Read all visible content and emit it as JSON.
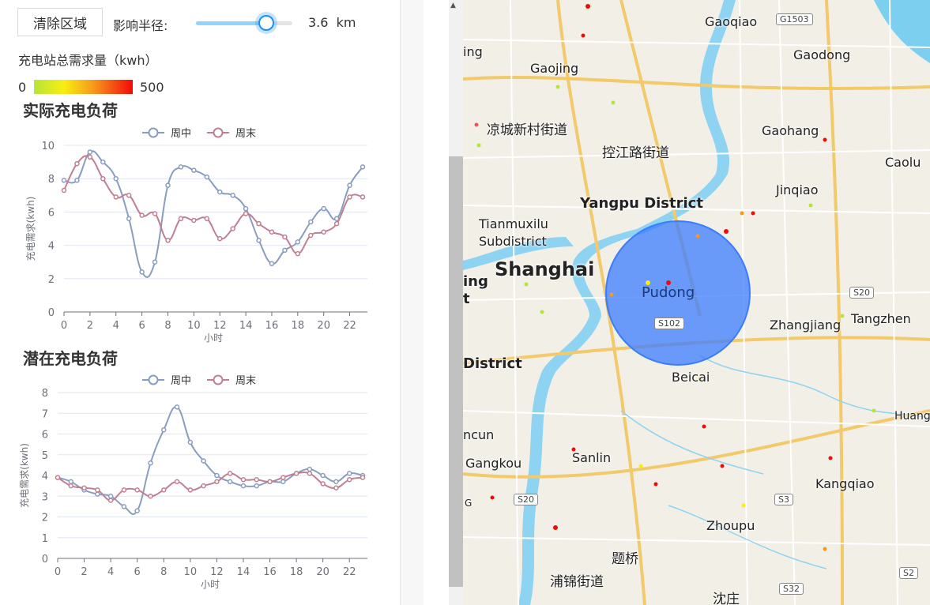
{
  "controls": {
    "clear_label": "清除区域",
    "radius_label": "影响半径:",
    "radius_value": "3.6",
    "radius_unit": "km",
    "radius_fraction": 0.73
  },
  "legend": {
    "title": "充电站总需求量（kwh）",
    "min": "0",
    "max": "500"
  },
  "charts": [
    {
      "title": "实际充电负荷",
      "legend": [
        "周中",
        "周末"
      ],
      "ylabel": "充电需求(kwh)",
      "xlabel": "小时",
      "yticks": [
        "0",
        "2",
        "4",
        "6",
        "8",
        "10"
      ],
      "xticks": [
        "0",
        "2",
        "4",
        "6",
        "8",
        "10",
        "12",
        "14",
        "16",
        "18",
        "20",
        "22"
      ]
    },
    {
      "title": "潜在充电负荷",
      "legend": [
        "周中",
        "周末"
      ],
      "ylabel": "充电需求(kwh)",
      "xlabel": "小时",
      "yticks": [
        "0",
        "1",
        "2",
        "3",
        "4",
        "5",
        "6",
        "7",
        "8"
      ],
      "xticks": [
        "0",
        "2",
        "4",
        "6",
        "8",
        "10",
        "12",
        "14",
        "16",
        "18",
        "20",
        "22"
      ]
    }
  ],
  "chart_data": [
    {
      "type": "line",
      "title": "实际充电负荷",
      "xlabel": "小时",
      "ylabel": "充电需求(kwh)",
      "ylim": [
        0,
        10
      ],
      "x": [
        0,
        1,
        2,
        3,
        4,
        5,
        6,
        7,
        8,
        9,
        10,
        11,
        12,
        13,
        14,
        15,
        16,
        17,
        18,
        19,
        20,
        21,
        22,
        23
      ],
      "series": [
        {
          "name": "周中",
          "color": "#8a9dbf",
          "values": [
            7.9,
            7.9,
            9.6,
            9.0,
            8.0,
            5.6,
            2.4,
            3.0,
            7.6,
            8.7,
            8.5,
            8.1,
            7.2,
            7.0,
            6.2,
            4.3,
            2.9,
            3.7,
            4.2,
            5.4,
            6.2,
            5.6,
            7.6,
            8.7
          ]
        },
        {
          "name": "周末",
          "color": "#c08091",
          "values": [
            7.3,
            8.9,
            9.3,
            8.0,
            6.9,
            7.0,
            5.8,
            5.9,
            4.3,
            5.6,
            5.5,
            5.6,
            4.4,
            5.0,
            5.9,
            5.3,
            4.8,
            4.5,
            3.5,
            4.6,
            4.8,
            5.3,
            6.9,
            6.9
          ]
        }
      ],
      "legend_position": "top-center",
      "grid": true
    },
    {
      "type": "line",
      "title": "潜在充电负荷",
      "xlabel": "小时",
      "ylabel": "充电需求(kwh)",
      "ylim": [
        0,
        8
      ],
      "x": [
        0,
        1,
        2,
        3,
        4,
        5,
        6,
        7,
        8,
        9,
        10,
        11,
        12,
        13,
        14,
        15,
        16,
        17,
        18,
        19,
        20,
        21,
        22,
        23
      ],
      "series": [
        {
          "name": "周中",
          "color": "#8a9dbf",
          "values": [
            3.9,
            3.7,
            3.3,
            3.1,
            3.0,
            2.5,
            2.3,
            4.6,
            6.2,
            7.3,
            5.6,
            4.7,
            4.0,
            3.7,
            3.5,
            3.5,
            3.7,
            3.7,
            4.1,
            4.3,
            4.0,
            3.7,
            4.1,
            4.0
          ]
        },
        {
          "name": "周末",
          "color": "#c08091",
          "values": [
            3.9,
            3.5,
            3.4,
            3.3,
            2.8,
            3.3,
            3.3,
            3.0,
            3.3,
            3.7,
            3.3,
            3.5,
            3.7,
            4.1,
            3.8,
            3.8,
            3.7,
            3.9,
            4.1,
            4.1,
            3.6,
            3.4,
            3.8,
            3.9
          ]
        }
      ],
      "legend_position": "top-center",
      "grid": true
    }
  ],
  "map": {
    "labels": [
      "Gaoqiao",
      "Gaodong",
      "Gaojing",
      "凉城新村街道",
      "控江路街道",
      "Gaohang",
      "Caolu",
      "Jinqiao",
      "Yangpu District",
      "Tianmuxilu",
      "Subdistrict",
      "Shanghai",
      "Pudong",
      "Zhangjiang",
      "Tangzhen",
      "District",
      "Beicai",
      "Huangl",
      "ncun",
      "Sanlin",
      "Gangkou",
      "Kangqiao",
      "Zhoupu",
      "题桥",
      "浦锦街道",
      "沈庄",
      "ing",
      "ing",
      "t",
      "G"
    ],
    "shields": [
      "G1503",
      "S20",
      "S102",
      "S20",
      "S3",
      "S2",
      "S32"
    ],
    "circle_color": "#3b7cff"
  }
}
